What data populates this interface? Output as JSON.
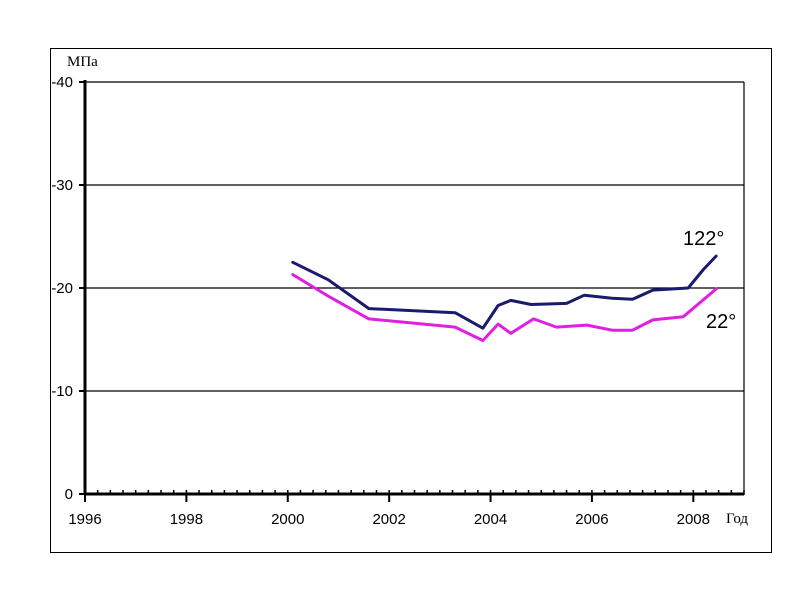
{
  "chart_data": {
    "type": "line",
    "ylabel": "МПа",
    "xlabel": "Год",
    "xlim": [
      1996,
      2009
    ],
    "ylim": [
      0,
      -40
    ],
    "x_ticks": [
      1996,
      1998,
      2000,
      2002,
      2004,
      2006,
      2008
    ],
    "x_tick_labels": [
      "1996",
      "1998",
      "2000",
      "2002",
      "2004",
      "2006",
      "2008"
    ],
    "y_ticks": [
      -40,
      -30,
      -20,
      -10,
      0
    ],
    "y_tick_labels": [
      "-40",
      "-30",
      "-20",
      "-10",
      "0"
    ],
    "grid": "horizontal",
    "series": [
      {
        "name": "122°",
        "color": "#1a1a6e",
        "points": [
          [
            2000.1,
            -22.5
          ],
          [
            2000.8,
            -20.8
          ],
          [
            2001.6,
            -18.0
          ],
          [
            2003.3,
            -17.6
          ],
          [
            2003.85,
            -16.1
          ],
          [
            2004.15,
            -18.3
          ],
          [
            2004.4,
            -18.8
          ],
          [
            2004.8,
            -18.4
          ],
          [
            2005.5,
            -18.5
          ],
          [
            2005.85,
            -19.3
          ],
          [
            2006.4,
            -19.0
          ],
          [
            2006.8,
            -18.9
          ],
          [
            2007.2,
            -19.8
          ],
          [
            2007.9,
            -20.0
          ],
          [
            2008.2,
            -21.8
          ],
          [
            2008.45,
            -23.1
          ]
        ]
      },
      {
        "name": "22°",
        "color": "#e020e0",
        "points": [
          [
            2000.1,
            -21.3
          ],
          [
            2000.8,
            -19.2
          ],
          [
            2001.6,
            -17.0
          ],
          [
            2003.3,
            -16.2
          ],
          [
            2003.85,
            -14.9
          ],
          [
            2004.15,
            -16.5
          ],
          [
            2004.4,
            -15.6
          ],
          [
            2004.85,
            -17.0
          ],
          [
            2005.3,
            -16.2
          ],
          [
            2005.9,
            -16.4
          ],
          [
            2006.4,
            -15.9
          ],
          [
            2006.8,
            -15.9
          ],
          [
            2007.2,
            -16.9
          ],
          [
            2007.8,
            -17.2
          ],
          [
            2008.45,
            -19.9
          ]
        ]
      }
    ]
  }
}
